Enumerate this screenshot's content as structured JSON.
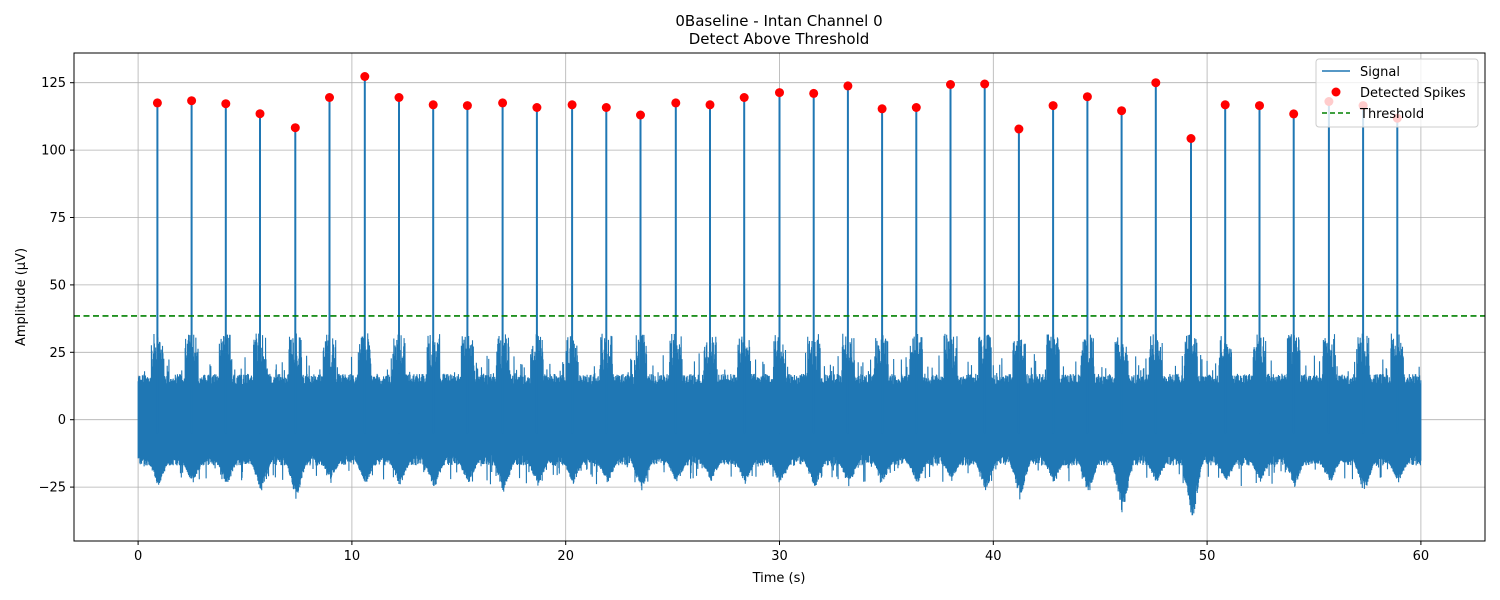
{
  "chart_data": {
    "type": "line",
    "title": [
      "0Baseline - Intan Channel 0",
      "Detect Above Threshold"
    ],
    "xlabel": "Time (s)",
    "ylabel": "Amplitude (µV)",
    "xlim": [
      -3,
      63
    ],
    "ylim": [
      -45,
      136
    ],
    "xticks": [
      0,
      10,
      20,
      30,
      40,
      50,
      60
    ],
    "yticks": [
      -25,
      0,
      25,
      50,
      75,
      100,
      125
    ],
    "grid": true,
    "legend_position": "top-right",
    "series": [
      {
        "name": "Signal",
        "kind": "line",
        "color": "#1f77b4",
        "x_range": [
          0,
          60
        ],
        "noise_range": [
          -15,
          15
        ]
      },
      {
        "name": "Detected Spikes",
        "kind": "scatter",
        "color": "#ff0000"
      },
      {
        "name": "Threshold",
        "kind": "hline",
        "color": "#008000",
        "value": 38.5
      }
    ],
    "spikes": {
      "t": [
        0.9,
        2.5,
        4.1,
        5.7,
        7.35,
        8.95,
        10.6,
        12.2,
        13.8,
        15.4,
        17.05,
        18.65,
        20.3,
        21.9,
        23.5,
        25.15,
        26.75,
        28.35,
        30.0,
        31.6,
        33.2,
        34.8,
        36.4,
        38.0,
        39.6,
        41.2,
        42.8,
        44.4,
        46.0,
        47.6,
        49.25,
        50.85,
        52.45,
        54.05,
        55.7,
        57.3,
        58.9
      ],
      "amplitude": [
        117.5,
        118.3,
        117.2,
        113.5,
        108.3,
        119.5,
        127.3,
        119.5,
        116.8,
        116.5,
        117.5,
        115.8,
        116.8,
        115.8,
        113.0,
        117.5,
        116.8,
        119.5,
        121.3,
        121.0,
        123.8,
        115.3,
        115.8,
        124.3,
        124.5,
        107.8,
        116.5,
        119.8,
        114.6,
        125.0,
        104.3,
        116.8,
        116.5,
        113.4,
        118.0,
        116.5,
        111.8
      ],
      "trough": [
        -25,
        -24,
        -25,
        -27,
        -30,
        -22,
        -24,
        -25,
        -26,
        -24,
        -28,
        -25,
        -24,
        -24,
        -27,
        -24,
        -23,
        -24,
        -25,
        -26,
        -25,
        -23,
        -24,
        -23,
        -27,
        -30,
        -24,
        -28,
        -36,
        -24,
        -40,
        -24,
        -23,
        -25,
        -24,
        -28,
        -24
      ]
    }
  }
}
